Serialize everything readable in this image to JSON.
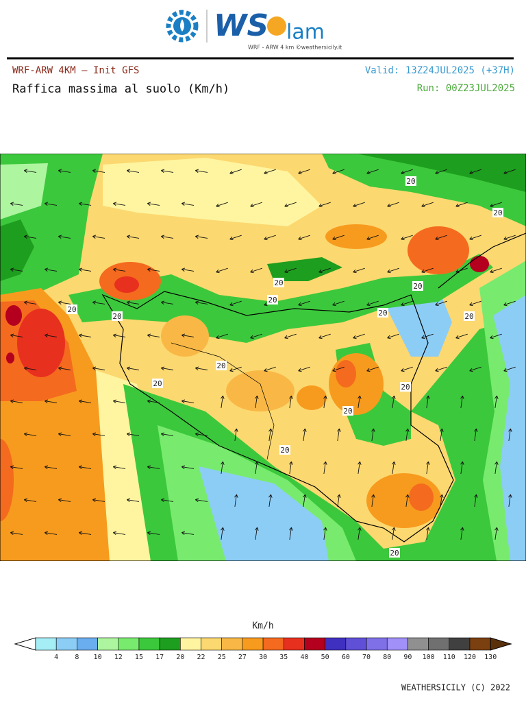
{
  "logo": {
    "brand": "WS",
    "suffix": "lam",
    "tagline": "WRF - ARW 4 km ©weathersicily.it"
  },
  "header": {
    "model": "WRF-ARW 4KM — Init GFS",
    "title": "Raffica massima al suolo (Km/h)",
    "valid": "Valid: 13Z24JUL2025 (+37H)",
    "run": "Run: 00Z23JUL2025"
  },
  "map": {
    "contour_labels": [
      20,
      20,
      20,
      20,
      20,
      20,
      20,
      20,
      20,
      20,
      20,
      20,
      20,
      20,
      20
    ]
  },
  "colorbar": {
    "unit": "Km/h",
    "ticks": [
      4,
      8,
      10,
      12,
      15,
      17,
      20,
      22,
      25,
      27,
      30,
      35,
      40,
      50,
      60,
      70,
      80,
      90,
      100,
      110,
      120,
      130
    ],
    "colors": [
      "#a6eef6",
      "#8ccdf5",
      "#6aaef0",
      "#aef5a0",
      "#78eb6e",
      "#3cc83c",
      "#1e9e1e",
      "#fff5a0",
      "#fcd870",
      "#f9b845",
      "#f79b1e",
      "#f46a1e",
      "#e8301e",
      "#b4001e",
      "#4030c0",
      "#6050d8",
      "#8070e8",
      "#a090f8",
      "#909090",
      "#707070",
      "#404040",
      "#7a4010",
      "#5a300a"
    ]
  },
  "footer": "WEATHERSICILY (C) 2022"
}
